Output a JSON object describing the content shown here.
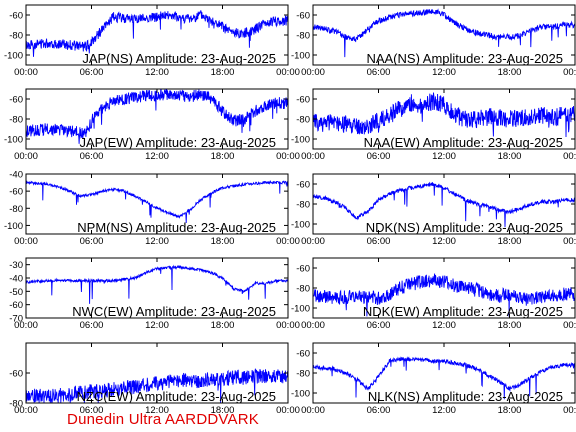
{
  "footer": "Dunedin Ultra AARDDVARK",
  "colors": {
    "trace": "#0000ff",
    "axis": "#000000",
    "footer": "#e00000",
    "background": "#ffffff"
  },
  "chart_data": [
    {
      "type": "line",
      "title": "JAP(NS) Amplitude: 23-Aug-2025",
      "xticks": [
        "00:00",
        "06:00",
        "12:00",
        "18:00",
        "00:00"
      ],
      "ylim": [
        -110,
        -50
      ],
      "yticks": [
        -100,
        -80,
        -60
      ],
      "series": [
        {
          "x": [
            0,
            2,
            4,
            5.5,
            6.4,
            8,
            10,
            12,
            13,
            14,
            15,
            16,
            17,
            18,
            19,
            20,
            21,
            22,
            23,
            24
          ],
          "values": [
            -90,
            -88,
            -90,
            -92,
            -82,
            -62,
            -64,
            -62,
            -60,
            -62,
            -64,
            -60,
            -66,
            -72,
            -78,
            -78,
            -74,
            -68,
            -66,
            -66
          ],
          "noise": 5
        }
      ]
    },
    {
      "type": "line",
      "title": "NAA(NS) Amplitude: 23-Aug-2025",
      "xticks": [
        "00:00",
        "06:00",
        "12:00",
        "18:00",
        "00:00"
      ],
      "ylim": [
        -110,
        -50
      ],
      "yticks": [
        -100,
        -80,
        -60
      ],
      "series": [
        {
          "x": [
            0,
            2,
            3,
            4,
            5,
            6,
            7,
            8,
            9,
            10,
            11,
            12,
            13,
            14,
            15,
            16,
            17,
            18,
            19,
            20,
            21,
            22,
            23,
            24
          ],
          "values": [
            -72,
            -76,
            -82,
            -84,
            -74,
            -66,
            -62,
            -60,
            -58,
            -58,
            -56,
            -60,
            -68,
            -74,
            -78,
            -80,
            -82,
            -82,
            -80,
            -76,
            -72,
            -72,
            -70,
            -70
          ],
          "noise": 3
        }
      ]
    },
    {
      "type": "line",
      "title": "JAP(EW) Amplitude: 23-Aug-2025",
      "xticks": [
        "00:00",
        "06:00",
        "12:00",
        "18:00",
        "00:00"
      ],
      "ylim": [
        -110,
        -50
      ],
      "yticks": [
        -100,
        -80,
        -60
      ],
      "series": [
        {
          "x": [
            0,
            2,
            4,
            5.5,
            6.4,
            8,
            10,
            12,
            13,
            14,
            15,
            16,
            17,
            18,
            19,
            20,
            21,
            22,
            23,
            24
          ],
          "values": [
            -92,
            -90,
            -92,
            -94,
            -74,
            -62,
            -58,
            -56,
            -55,
            -56,
            -58,
            -55,
            -60,
            -72,
            -82,
            -80,
            -72,
            -66,
            -64,
            -64
          ],
          "noise": 6
        }
      ]
    },
    {
      "type": "line",
      "title": "NAA(EW) Amplitude: 23-Aug-2025",
      "xticks": [
        "00:00",
        "06:00",
        "12:00",
        "18:00",
        "00:00"
      ],
      "ylim": [
        -110,
        -50
      ],
      "yticks": [
        -100,
        -80,
        -60
      ],
      "series": [
        {
          "x": [
            0,
            2,
            4,
            5,
            6,
            7,
            8,
            9,
            10,
            11,
            12,
            13,
            14,
            15,
            16,
            17,
            18,
            19,
            20,
            21,
            22,
            23,
            24
          ],
          "values": [
            -84,
            -84,
            -86,
            -88,
            -82,
            -76,
            -70,
            -64,
            -66,
            -62,
            -66,
            -76,
            -80,
            -80,
            -78,
            -78,
            -80,
            -80,
            -78,
            -76,
            -78,
            -76,
            -76
          ],
          "noise": 9
        }
      ]
    },
    {
      "type": "line",
      "title": "NPM(NS) Amplitude: 23-Aug-2025",
      "xticks": [
        "00:00",
        "06:00",
        "12:00",
        "18:00",
        "00:00"
      ],
      "ylim": [
        -110,
        -40
      ],
      "yticks": [
        -100,
        -80,
        -60,
        -40
      ],
      "series": [
        {
          "x": [
            0,
            2,
            3,
            4,
            5,
            6,
            7,
            8,
            9,
            10,
            11,
            12,
            13,
            14,
            15,
            16,
            17,
            18,
            19,
            20,
            21,
            22,
            23,
            24
          ],
          "values": [
            -50,
            -52,
            -55,
            -60,
            -66,
            -64,
            -60,
            -58,
            -60,
            -66,
            -72,
            -80,
            -85,
            -90,
            -82,
            -70,
            -62,
            -56,
            -54,
            -52,
            -51,
            -50,
            -50,
            -50
          ],
          "noise": 1.5
        }
      ]
    },
    {
      "type": "line",
      "title": "NDK(NS) Amplitude: 23-Aug-2025",
      "xticks": [
        "00:00",
        "06:00",
        "12:00",
        "18:00",
        "00:00"
      ],
      "ylim": [
        -110,
        -50
      ],
      "yticks": [
        -100,
        -80,
        -60
      ],
      "series": [
        {
          "x": [
            0,
            1,
            2,
            3,
            4,
            5,
            6,
            7,
            8,
            9,
            10,
            11,
            12,
            13,
            14,
            15,
            16,
            17,
            18,
            19,
            20,
            21,
            22,
            23,
            24
          ],
          "values": [
            -72,
            -74,
            -78,
            -84,
            -94,
            -88,
            -76,
            -70,
            -66,
            -64,
            -62,
            -60,
            -64,
            -70,
            -76,
            -80,
            -82,
            -86,
            -88,
            -84,
            -80,
            -78,
            -78,
            -76,
            -76
          ],
          "noise": 2
        }
      ]
    },
    {
      "type": "line",
      "title": "NWC(EW) Amplitude: 23-Aug-2025",
      "xticks": [
        "00:00",
        "06:00",
        "12:00",
        "18:00",
        "00:00"
      ],
      "ylim": [
        -70,
        -25
      ],
      "yticks": [
        -70,
        -60,
        -50,
        -40,
        -30
      ],
      "series": [
        {
          "x": [
            0,
            2,
            4,
            6,
            8,
            10,
            11,
            12,
            13,
            14,
            15,
            16,
            17,
            18,
            19,
            20,
            21,
            22,
            23,
            24
          ],
          "values": [
            -43,
            -42,
            -42,
            -42,
            -42,
            -40,
            -36,
            -33,
            -32,
            -32,
            -33,
            -34,
            -36,
            -40,
            -48,
            -50,
            -44,
            -44,
            -42,
            -42
          ],
          "noise": 1
        }
      ]
    },
    {
      "type": "line",
      "title": "NDK(EW) Amplitude: 23-Aug-2025",
      "xticks": [
        "00:00",
        "06:00",
        "12:00",
        "18:00",
        "00:00"
      ],
      "ylim": [
        -110,
        -50
      ],
      "yticks": [
        -100,
        -80,
        -60
      ],
      "series": [
        {
          "x": [
            0,
            2,
            4,
            6,
            7,
            8,
            9,
            10,
            11,
            12,
            13,
            14,
            15,
            16,
            17,
            18,
            19,
            20,
            21,
            22,
            23,
            24
          ],
          "values": [
            -88,
            -90,
            -88,
            -90,
            -86,
            -80,
            -76,
            -74,
            -72,
            -74,
            -78,
            -80,
            -82,
            -86,
            -88,
            -86,
            -90,
            -92,
            -88,
            -88,
            -86,
            -86
          ],
          "noise": 7
        }
      ]
    },
    {
      "type": "line",
      "title": "NZC(EW) Amplitude: 23-Aug-2025",
      "xticks": [
        "00:00",
        "06:00",
        "12:00",
        "18:00",
        "00:00"
      ],
      "ylim": [
        -80,
        -40
      ],
      "yticks": [
        -80,
        -60
      ],
      "series": [
        {
          "x": [
            0,
            2,
            4,
            6,
            7,
            8,
            9,
            10,
            11,
            12,
            13,
            14,
            15,
            16,
            17,
            18,
            19,
            20,
            21,
            22,
            23,
            24
          ],
          "values": [
            -74,
            -76,
            -74,
            -72,
            -72,
            -71,
            -70,
            -69,
            -68,
            -67,
            -66,
            -65,
            -65,
            -65,
            -64,
            -64,
            -63,
            -63,
            -62,
            -62,
            -62,
            -62
          ],
          "noise": 5
        }
      ]
    },
    {
      "type": "line",
      "title": "NLK(NS) Amplitude: 23-Aug-2025",
      "xticks": [
        "00:00",
        "06:00",
        "12:00",
        "18:00",
        "00:00"
      ],
      "ylim": [
        -110,
        -50
      ],
      "yticks": [
        -100,
        -80,
        -60
      ],
      "series": [
        {
          "x": [
            0,
            2,
            3,
            4,
            5,
            6,
            7,
            8,
            9,
            10,
            11,
            12,
            13,
            14,
            15,
            16,
            17,
            18,
            19,
            20,
            21,
            22,
            23,
            24
          ],
          "values": [
            -74,
            -76,
            -80,
            -86,
            -96,
            -84,
            -68,
            -66,
            -66,
            -67,
            -68,
            -68,
            -70,
            -72,
            -76,
            -82,
            -88,
            -96,
            -92,
            -84,
            -78,
            -74,
            -72,
            -72
          ],
          "noise": 2
        }
      ]
    }
  ]
}
